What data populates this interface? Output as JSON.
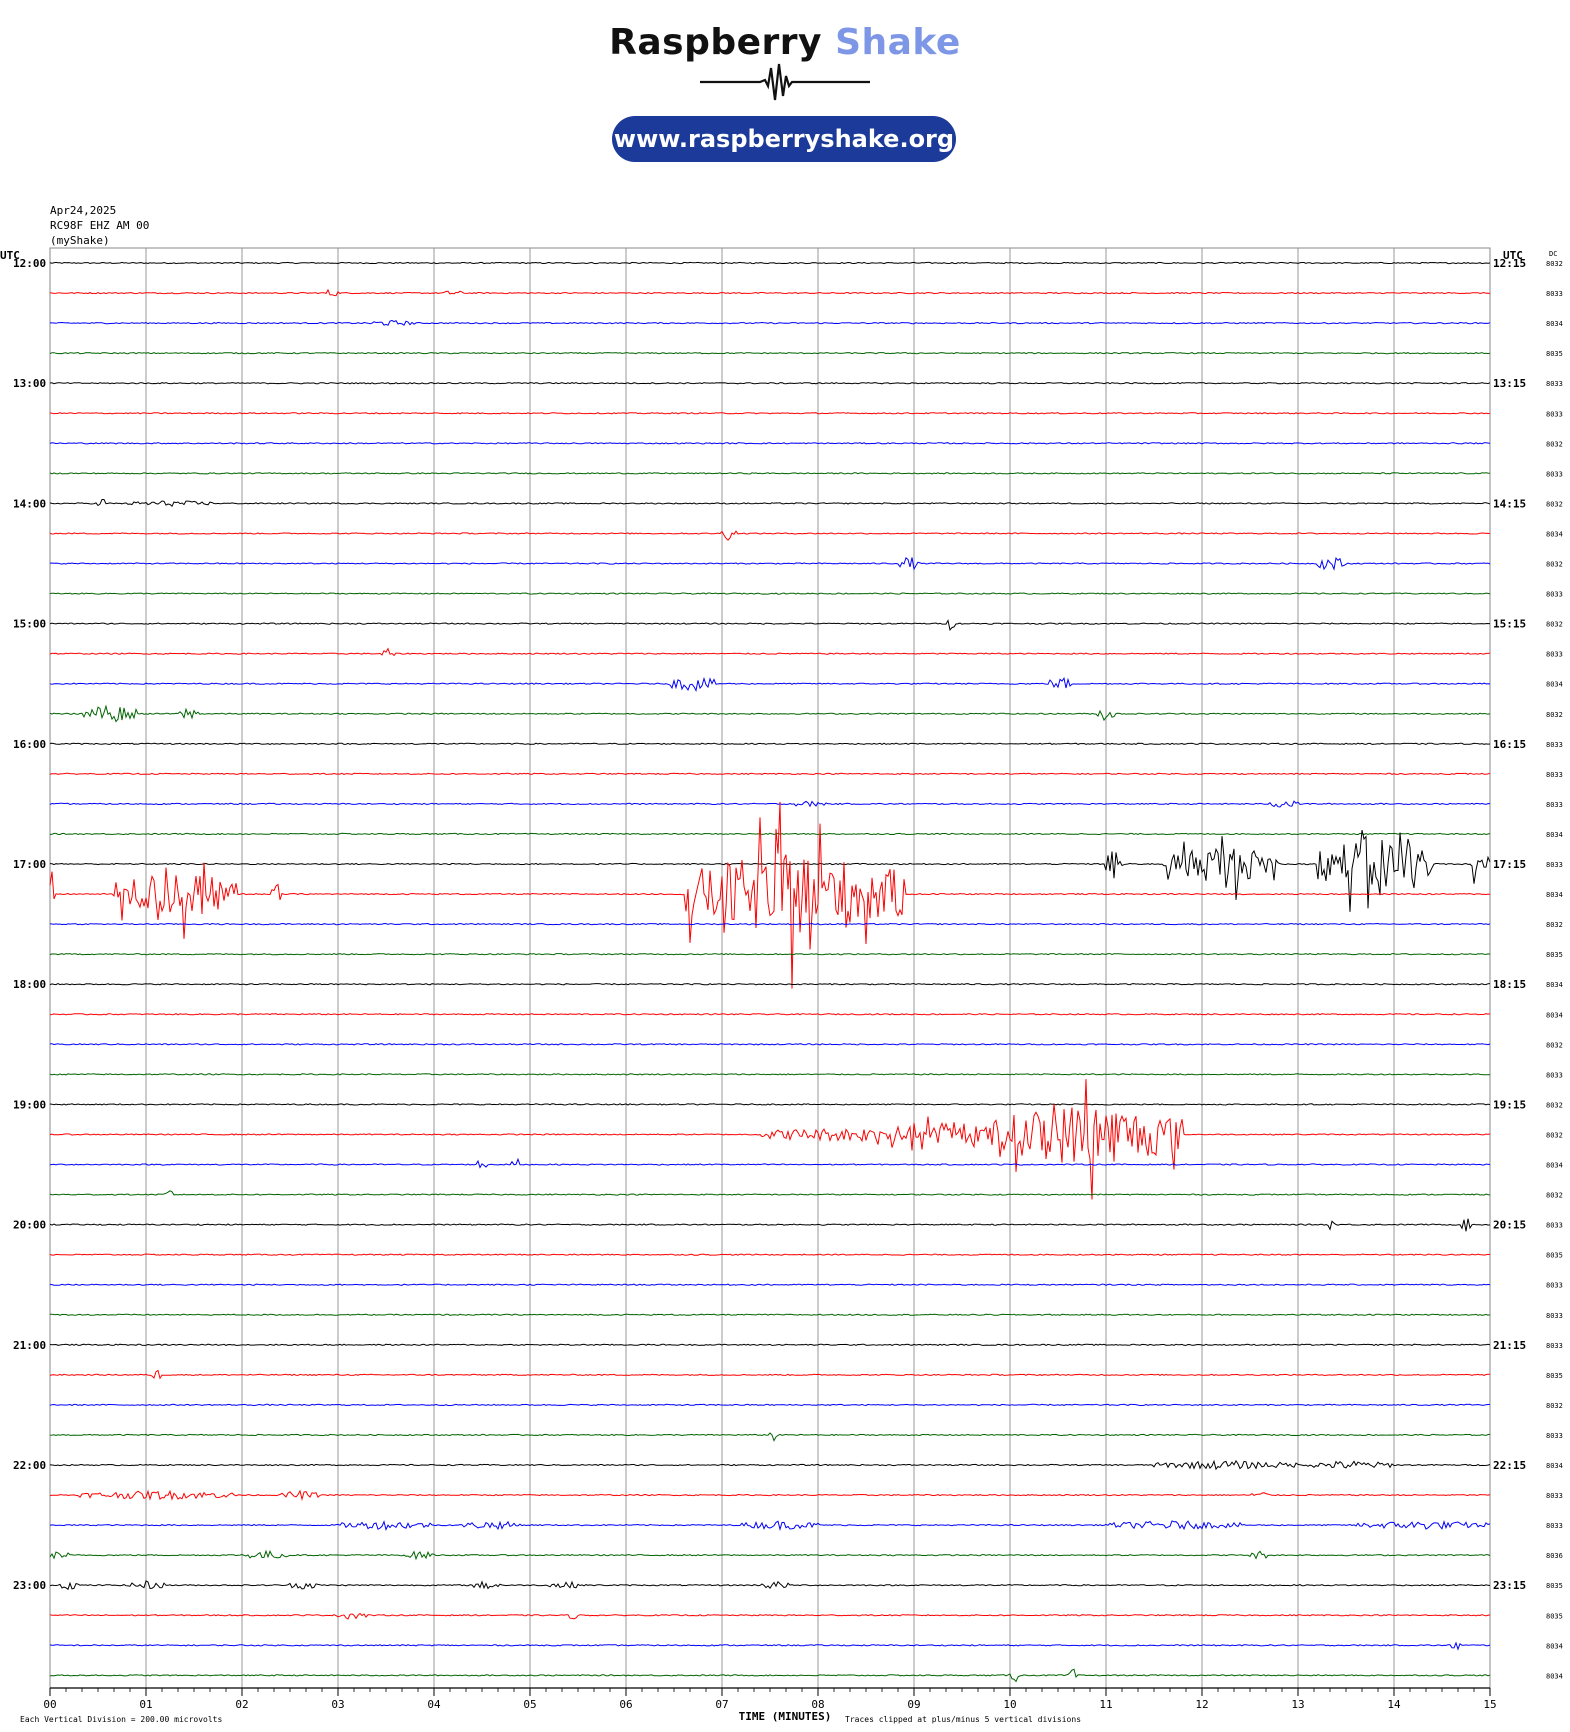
{
  "header": {
    "brand_part1": "Raspberry",
    "brand_part2": "Shake",
    "url": "www.raspberryshake.org"
  },
  "station": {
    "date": "Apr24,2025",
    "channel": "RC98F EHZ AM 00",
    "source": "(myShake)"
  },
  "chart_data": {
    "type": "line",
    "title": "",
    "xlabel": "TIME (MINUTES)",
    "x_ticks": [
      "00",
      "01",
      "02",
      "03",
      "04",
      "05",
      "06",
      "07",
      "08",
      "09",
      "10",
      "11",
      "12",
      "13",
      "14",
      "15"
    ],
    "xlim": [
      0,
      15
    ],
    "left_axis_label": "UTC",
    "right_axis_label": "UTC",
    "dc_label": "DC",
    "left_hour_labels": [
      "12:00",
      "13:00",
      "14:00",
      "15:00",
      "16:00",
      "17:00",
      "18:00",
      "19:00",
      "20:00",
      "21:00",
      "22:00",
      "23:00"
    ],
    "right_hour_labels": [
      "12:15",
      "13:15",
      "14:15",
      "15:15",
      "16:15",
      "17:15",
      "18:15",
      "19:15",
      "20:15",
      "21:15",
      "22:15",
      "23:15"
    ],
    "dc_values": [
      "8032",
      "8033",
      "8034",
      "8035",
      "8033",
      "8033",
      "8032",
      "8033",
      "8032",
      "8034",
      "8032",
      "8033",
      "8032",
      "8033",
      "8034",
      "8032",
      "8033",
      "8033",
      "8033",
      "8034",
      "8033",
      "8034",
      "8032",
      "8035",
      "8034",
      "8034",
      "8032",
      "8033",
      "8032",
      "8032",
      "8034",
      "8032",
      "8033",
      "8035",
      "8033",
      "8033",
      "8033",
      "8035",
      "8032",
      "8033",
      "8034",
      "8033",
      "8033",
      "8036",
      "8035",
      "8035",
      "8034",
      "8034"
    ],
    "trace_colors": [
      "#000000",
      "#ff0000",
      "#0000ff",
      "#006400"
    ],
    "footer_left": "Each Vertical Division =  200.00 microvolts",
    "footer_right": "Traces clipped at plus/minus 5 vertical divisions",
    "events": [
      {
        "row": 1,
        "start": 2.85,
        "end": 3.0,
        "amp": 0.3
      },
      {
        "row": 1,
        "start": 4.1,
        "end": 4.3,
        "amp": 0.2
      },
      {
        "row": 2,
        "start": 3.3,
        "end": 3.8,
        "amp": 0.2
      },
      {
        "row": 8,
        "start": 0.5,
        "end": 0.6,
        "amp": 0.5
      },
      {
        "row": 8,
        "start": 0.8,
        "end": 1.7,
        "amp": 0.2
      },
      {
        "row": 9,
        "start": 7.0,
        "end": 7.15,
        "amp": 0.5
      },
      {
        "row": 10,
        "start": 8.85,
        "end": 9.05,
        "amp": 0.5
      },
      {
        "row": 10,
        "start": 13.2,
        "end": 13.5,
        "amp": 0.5
      },
      {
        "row": 12,
        "start": 9.35,
        "end": 9.42,
        "amp": 0.5
      },
      {
        "row": 13,
        "start": 3.45,
        "end": 3.6,
        "amp": 0.4
      },
      {
        "row": 14,
        "start": 6.45,
        "end": 6.95,
        "amp": 0.5
      },
      {
        "row": 14,
        "start": 10.4,
        "end": 10.65,
        "amp": 0.5
      },
      {
        "row": 15,
        "start": 0.35,
        "end": 0.9,
        "amp": 0.6
      },
      {
        "row": 15,
        "start": 1.35,
        "end": 1.55,
        "amp": 0.5
      },
      {
        "row": 15,
        "start": 10.9,
        "end": 11.1,
        "amp": 0.5
      },
      {
        "row": 18,
        "start": 7.7,
        "end": 8.1,
        "amp": 0.2
      },
      {
        "row": 18,
        "start": 12.7,
        "end": 13.0,
        "amp": 0.3
      },
      {
        "row": 21,
        "start": 0.0,
        "end": 0.05,
        "amp": 2.0
      },
      {
        "row": 21,
        "start": 0.65,
        "end": 1.95,
        "amp": 1.6
      },
      {
        "row": 21,
        "start": 2.3,
        "end": 2.4,
        "amp": 1.0
      },
      {
        "row": 21,
        "start": 6.6,
        "end": 8.9,
        "amp": 3.0
      },
      {
        "row": 20,
        "start": 11.0,
        "end": 11.2,
        "amp": 1.2
      },
      {
        "row": 20,
        "start": 11.6,
        "end": 12.8,
        "amp": 1.3
      },
      {
        "row": 20,
        "start": 13.2,
        "end": 14.4,
        "amp": 2.0
      },
      {
        "row": 20,
        "start": 14.8,
        "end": 15.0,
        "amp": 1.0
      },
      {
        "row": 29,
        "start": 7.4,
        "end": 11.0,
        "amp": 0.6
      },
      {
        "row": 29,
        "start": 9.8,
        "end": 11.8,
        "amp": 2.2
      },
      {
        "row": 30,
        "start": 4.45,
        "end": 4.55,
        "amp": 0.5
      },
      {
        "row": 30,
        "start": 4.8,
        "end": 4.9,
        "amp": 0.5
      },
      {
        "row": 31,
        "start": 1.2,
        "end": 1.3,
        "amp": 0.4
      },
      {
        "row": 32,
        "start": 13.3,
        "end": 13.4,
        "amp": 0.4
      },
      {
        "row": 32,
        "start": 14.7,
        "end": 14.8,
        "amp": 0.5
      },
      {
        "row": 37,
        "start": 1.05,
        "end": 1.15,
        "amp": 0.5
      },
      {
        "row": 39,
        "start": 7.5,
        "end": 7.6,
        "amp": 0.5
      },
      {
        "row": 40,
        "start": 11.5,
        "end": 13.0,
        "amp": 0.3
      },
      {
        "row": 40,
        "start": 13.1,
        "end": 14.0,
        "amp": 0.3
      },
      {
        "row": 41,
        "start": 0.3,
        "end": 2.0,
        "amp": 0.3
      },
      {
        "row": 41,
        "start": 2.4,
        "end": 2.8,
        "amp": 0.3
      },
      {
        "row": 41,
        "start": 12.5,
        "end": 12.7,
        "amp": 0.3
      },
      {
        "row": 42,
        "start": 3.0,
        "end": 4.0,
        "amp": 0.3
      },
      {
        "row": 42,
        "start": 4.3,
        "end": 4.9,
        "amp": 0.3
      },
      {
        "row": 42,
        "start": 7.2,
        "end": 8.0,
        "amp": 0.3
      },
      {
        "row": 42,
        "start": 11.0,
        "end": 12.4,
        "amp": 0.3
      },
      {
        "row": 42,
        "start": 13.6,
        "end": 15.0,
        "amp": 0.3
      },
      {
        "row": 43,
        "start": 0.0,
        "end": 0.2,
        "amp": 0.3
      },
      {
        "row": 43,
        "start": 2.0,
        "end": 2.5,
        "amp": 0.3
      },
      {
        "row": 43,
        "start": 3.7,
        "end": 4.0,
        "amp": 0.3
      },
      {
        "row": 43,
        "start": 12.5,
        "end": 12.7,
        "amp": 0.3
      },
      {
        "row": 44,
        "start": 0.1,
        "end": 0.3,
        "amp": 0.3
      },
      {
        "row": 44,
        "start": 0.8,
        "end": 1.2,
        "amp": 0.3
      },
      {
        "row": 44,
        "start": 2.5,
        "end": 2.8,
        "amp": 0.3
      },
      {
        "row": 44,
        "start": 4.4,
        "end": 4.7,
        "amp": 0.3
      },
      {
        "row": 44,
        "start": 5.2,
        "end": 5.5,
        "amp": 0.3
      },
      {
        "row": 44,
        "start": 7.4,
        "end": 7.7,
        "amp": 0.3
      },
      {
        "row": 45,
        "start": 3.0,
        "end": 3.3,
        "amp": 0.3
      },
      {
        "row": 45,
        "start": 5.4,
        "end": 5.5,
        "amp": 0.3
      },
      {
        "row": 46,
        "start": 14.6,
        "end": 14.7,
        "amp": 0.4
      },
      {
        "row": 47,
        "start": 10.0,
        "end": 10.1,
        "amp": 0.5
      },
      {
        "row": 47,
        "start": 10.6,
        "end": 10.7,
        "amp": 0.5
      }
    ]
  }
}
